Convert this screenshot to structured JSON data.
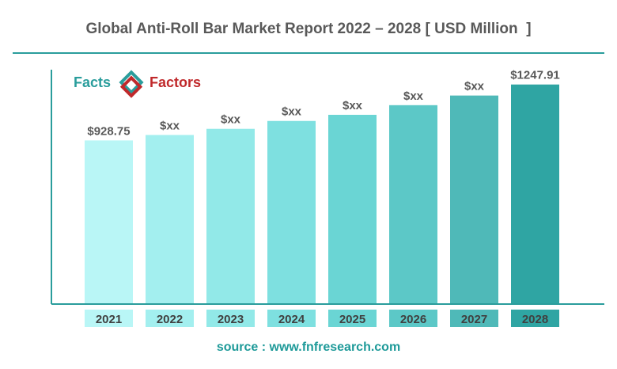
{
  "title": "Global Anti-Roll Bar Market Report 2022 – 2028 [ USD Million  ]",
  "logo": {
    "left": "Facts",
    "right": "Factors",
    "left_color": "#2a9d9c",
    "right_color": "#c0292b"
  },
  "source": "source : www.fnfresearch.com",
  "chart_data": {
    "type": "bar",
    "categories": [
      "2021",
      "2022",
      "2023",
      "2024",
      "2025",
      "2026",
      "2027",
      "2028"
    ],
    "values": [
      928.75,
      960,
      995,
      1040,
      1075,
      1130,
      1185,
      1247.91
    ],
    "data_labels": [
      "$928.75",
      "$xx",
      "$xx",
      "$xx",
      "$xx",
      "$xx",
      "$xx",
      "$1247.91"
    ],
    "bar_colors": [
      "#b9f6f6",
      "#a3efef",
      "#92e9e8",
      "#7ee0e0",
      "#6ad5d4",
      "#5cc8c7",
      "#4fb9b8",
      "#2fa5a3"
    ],
    "label_colors": [
      "#b9f6f6",
      "#a3efef",
      "#92e9e8",
      "#7ee0e0",
      "#6ad5d4",
      "#5cc8c7",
      "#4fb9b8",
      "#2fa5a3"
    ],
    "ylim": [
      0,
      1300
    ],
    "grid": false,
    "legend": "none"
  }
}
